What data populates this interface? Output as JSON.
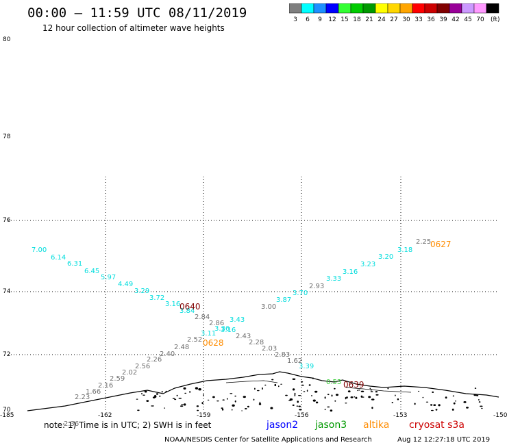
{
  "header": {
    "title": "00:00 – 11:59 UTC 08/11/2019",
    "subtitle": "12 hour collection of altimeter wave heights"
  },
  "colorbar": {
    "unit": "(ft)",
    "bins": [
      {
        "label": "3",
        "color": "#7f7f7f"
      },
      {
        "label": "6",
        "color": "#00ffff"
      },
      {
        "label": "9",
        "color": "#1e90ff"
      },
      {
        "label": "12",
        "color": "#0000ff"
      },
      {
        "label": "15",
        "color": "#33ff33"
      },
      {
        "label": "18",
        "color": "#00cc00"
      },
      {
        "label": "21",
        "color": "#009900"
      },
      {
        "label": "24",
        "color": "#ffff00"
      },
      {
        "label": "27",
        "color": "#ffd700"
      },
      {
        "label": "30",
        "color": "#ffa500"
      },
      {
        "label": "33",
        "color": "#ff0000"
      },
      {
        "label": "36",
        "color": "#cc0000"
      },
      {
        "label": "39",
        "color": "#800000"
      },
      {
        "label": "42",
        "color": "#990099"
      },
      {
        "label": "45",
        "color": "#cc99ff"
      },
      {
        "label": "70",
        "color": "#ff99ff"
      },
      {
        "label": "",
        "color": "#000000"
      }
    ]
  },
  "axes": {
    "lat_labels": [
      "80",
      "78",
      "76",
      "74",
      "72",
      "70"
    ],
    "lon_labels": [
      "-185",
      "-162",
      "-159",
      "-156",
      "-153",
      "-150"
    ]
  },
  "wave_points": {
    "cyan": [
      [
        "7.00",
        46,
        368
      ],
      [
        "6.14",
        74,
        379
      ],
      [
        "6.31",
        98,
        388
      ],
      [
        "6.45",
        123,
        399
      ],
      [
        "5.97",
        147,
        408
      ],
      [
        "4.49",
        172,
        418
      ],
      [
        "3.29",
        196,
        428
      ],
      [
        "3.72",
        218,
        438
      ],
      [
        "3.16",
        241,
        447
      ],
      [
        "3.84",
        262,
        457
      ],
      [
        "3.11",
        293,
        490
      ],
      [
        "3.36",
        313,
        483
      ],
      [
        "3.16",
        322,
        485
      ],
      [
        "3.43",
        335,
        470
      ],
      [
        "3.87",
        403,
        441
      ],
      [
        "3.70",
        427,
        431
      ],
      [
        "3.33",
        476,
        410
      ],
      [
        "3.16",
        500,
        400
      ],
      [
        "3.23",
        526,
        389
      ],
      [
        "3.20",
        552,
        378
      ],
      [
        "3.18",
        580,
        368
      ],
      [
        "3.39",
        436,
        538
      ]
    ],
    "gray": [
      [
        "2.36",
        93,
        622
      ],
      [
        "2.23",
        109,
        583
      ],
      [
        "1.66",
        125,
        575
      ],
      [
        "2.16",
        143,
        566
      ],
      [
        "2.59",
        160,
        556
      ],
      [
        "2.02",
        178,
        547
      ],
      [
        "2.56",
        197,
        538
      ],
      [
        "2.26",
        214,
        528
      ],
      [
        "2.40",
        233,
        520
      ],
      [
        "2.48",
        254,
        510
      ],
      [
        "2.52",
        273,
        499
      ],
      [
        "2.84",
        284,
        466
      ],
      [
        "2.86",
        305,
        475
      ],
      [
        "3.00",
        381,
        451
      ],
      [
        "2.93",
        451,
        421
      ],
      [
        "2.43",
        344,
        494
      ],
      [
        "2.28",
        363,
        503
      ],
      [
        "2.03",
        382,
        512
      ],
      [
        "2.83",
        401,
        521
      ],
      [
        "1.62",
        419,
        530
      ],
      [
        "2.25",
        607,
        356
      ]
    ],
    "green": [
      [
        "0.53",
        476,
        561
      ]
    ],
    "times": [
      {
        "label": "0640",
        "color": "#800000"
      },
      {
        "label": "0628",
        "color": "#ff8c00"
      },
      {
        "label": "0627",
        "color": "#ff8c00"
      },
      {
        "label": "0639",
        "color": "#800000"
      }
    ]
  },
  "footer": {
    "note": "note: 1) Time is in UTC; 2) SWH is in feet",
    "satellites": [
      {
        "label": "jason2",
        "color": "#0000ff"
      },
      {
        "label": "jason3",
        "color": "#009900"
      },
      {
        "label": "altika",
        "color": "#ff8c00"
      },
      {
        "label": "cryosat s3a",
        "color": "#cc0000"
      }
    ],
    "credit": "NOAA/NESDIS Center for Satellite Applications and Research",
    "timestamp": "Aug 12 12:27:18 UTC 2019"
  }
}
